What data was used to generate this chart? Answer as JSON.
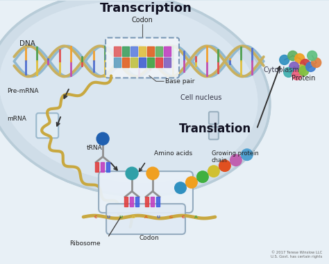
{
  "title_transcription": "Transcription",
  "title_translation": "Translation",
  "label_dna": "DNA",
  "label_codon_top": "Codon",
  "label_base_pair": "Base pair",
  "label_pre_mrna": "Pre-mRNA",
  "label_mrna": "mRNA",
  "label_cell_nucleus": "Cell nucleus",
  "label_cytoplasm": "Cytoplasm",
  "label_trna": "tRNA",
  "label_amino_acids": "Amino acids",
  "label_growing_chain": "Growing protein\nchain",
  "label_ribosome": "Ribosome",
  "label_codon2": "Codon",
  "label_protein": "Protein",
  "label_copyright": "© 2017 Terese Winslow LLC\nU.S. Govt. has certain rights",
  "bg_outer": "#dce8f0",
  "bg_inner": "#e8f2f8",
  "nucleus_face": "#d8e8f2",
  "nucleus_edge": "#b8ccd8",
  "cytoplasm_face": "#eef4f8",
  "dna_strand_color": "#c8b060",
  "dna_helix_blue1": "#a0c0d8",
  "dna_helix_blue2": "#80a8c4",
  "mrna_color": "#c8a840",
  "ribo_face": "#e8f0f6",
  "ribo_edge": "#a0b8cc",
  "amino_colors": [
    "#3090c0",
    "#f0a020",
    "#40b040",
    "#d0c030",
    "#e05020",
    "#c060b0",
    "#50a0d0"
  ],
  "protein_colors": [
    "#3090c0",
    "#60b060",
    "#f0a020",
    "#d04040",
    "#c0c040",
    "#8060c0",
    "#40b0b0",
    "#f06080",
    "#80c040",
    "#4080d0",
    "#e08040",
    "#60c080"
  ],
  "trna_colors": [
    "#e04040",
    "#c040c0",
    "#4060e0"
  ],
  "codon_top_colors": [
    "#e06060",
    "#40a060",
    "#6080e0",
    "#e0c040",
    "#e06020",
    "#60b060",
    "#c040c0"
  ],
  "codon_bot_colors": [
    "#60a0c0",
    "#e06020",
    "#c0c040",
    "#4060d0",
    "#40a040",
    "#e04040",
    "#8060c0"
  ]
}
